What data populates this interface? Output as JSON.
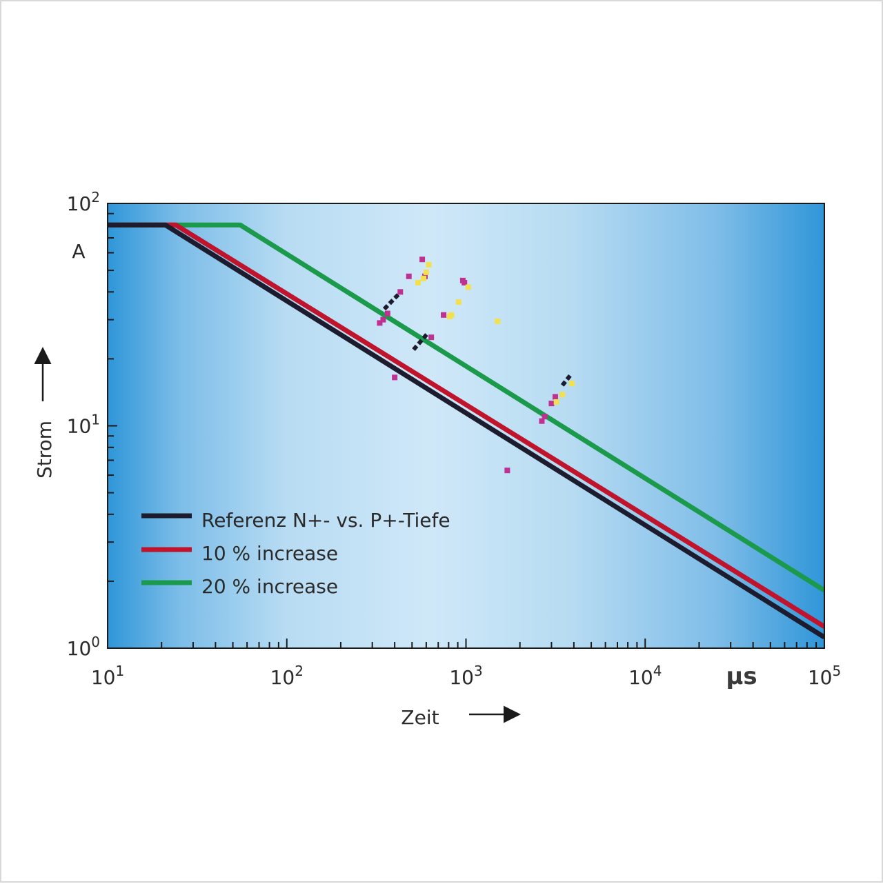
{
  "chart_data": {
    "type": "line",
    "xscale": "log",
    "yscale": "log",
    "xlim": [
      10,
      100000
    ],
    "ylim": [
      1,
      100
    ],
    "xlabel": "Zeit",
    "ylabel": "Strom",
    "xunit": "µs",
    "yunit": "A",
    "x_ticks": [
      {
        "value": 10,
        "base": "10",
        "exp": "1"
      },
      {
        "value": 100,
        "base": "10",
        "exp": "2"
      },
      {
        "value": 1000,
        "base": "10",
        "exp": "3"
      },
      {
        "value": 10000,
        "base": "10",
        "exp": "4"
      },
      {
        "value": 100000,
        "base": "10",
        "exp": "5"
      }
    ],
    "y_ticks": [
      {
        "value": 1,
        "base": "10",
        "exp": "0"
      },
      {
        "value": 10,
        "base": "10",
        "exp": "1"
      },
      {
        "value": 100,
        "base": "10",
        "exp": "2"
      }
    ],
    "legend_position": "bottom-left",
    "series": [
      {
        "name": "Referenz N+- vs. P+-Tiefe",
        "color": "#1c1c2e",
        "points": [
          [
            10,
            80
          ],
          [
            21,
            80
          ],
          [
            100000,
            1.12
          ]
        ]
      },
      {
        "name": "10 % increase",
        "color": "#c0142c",
        "points": [
          [
            10,
            80
          ],
          [
            24,
            80
          ],
          [
            100000,
            1.25
          ]
        ]
      },
      {
        "name": "20 % increase",
        "color": "#1a9a4a",
        "points": [
          [
            10,
            80
          ],
          [
            55,
            80
          ],
          [
            100000,
            1.82
          ]
        ]
      }
    ],
    "scatter": [
      {
        "name": "",
        "color": "#c03090",
        "points": [
          [
            330,
            29
          ],
          [
            345,
            30
          ],
          [
            365,
            32
          ],
          [
            400,
            16.5
          ],
          [
            430,
            40
          ],
          [
            480,
            47
          ],
          [
            570,
            56
          ],
          [
            590,
            47
          ],
          [
            640,
            25
          ],
          [
            750,
            31.5
          ],
          [
            960,
            45
          ],
          [
            980,
            44
          ],
          [
            1700,
            6.3
          ],
          [
            2650,
            10.5
          ],
          [
            2750,
            11
          ],
          [
            3000,
            12.6
          ],
          [
            3150,
            13.5
          ]
        ]
      },
      {
        "name": "",
        "color": "#f2e050",
        "points": [
          [
            540,
            44
          ],
          [
            580,
            46
          ],
          [
            600,
            49
          ],
          [
            620,
            53
          ],
          [
            810,
            31
          ],
          [
            830,
            31.5
          ],
          [
            910,
            36
          ],
          [
            1030,
            42
          ],
          [
            1500,
            29.5
          ],
          [
            3200,
            12.8
          ],
          [
            3450,
            13.8
          ],
          [
            3900,
            15.5
          ]
        ]
      }
    ],
    "dashes": [
      {
        "color": "#1c1c2e",
        "points": [
          [
            350,
            33.5
          ],
          [
            420,
            39
          ]
        ]
      },
      {
        "color": "#1c1c2e",
        "points": [
          [
            510,
            22
          ],
          [
            610,
            26
          ]
        ]
      },
      {
        "color": "#1c1c2e",
        "points": [
          [
            3450,
            15.2
          ],
          [
            3850,
            17
          ]
        ]
      }
    ]
  }
}
